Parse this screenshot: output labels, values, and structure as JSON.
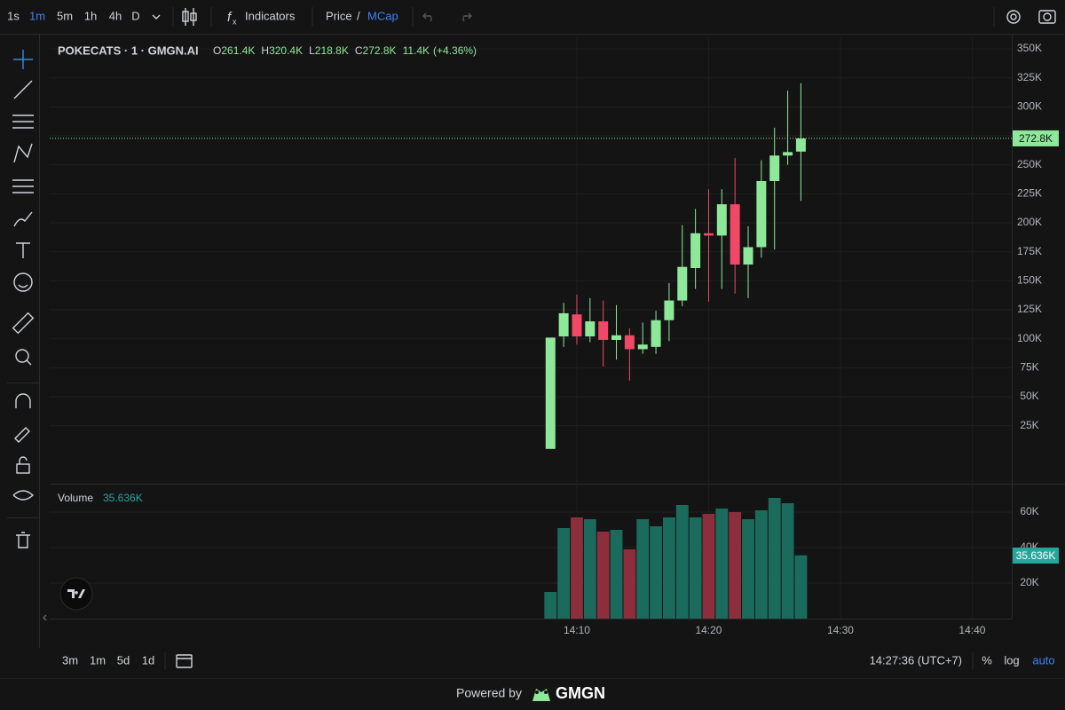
{
  "toolbar": {
    "intervals": [
      "1s",
      "1m",
      "5m",
      "1h",
      "4h",
      "D"
    ],
    "indicators": "Indicators",
    "price": "Price",
    "slash": "/",
    "mcap": "MCap"
  },
  "bottom_bar": {
    "ranges": [
      "3m",
      "1m",
      "5d",
      "1d"
    ],
    "clock": "14:27:36 (UTC+7)",
    "percent": "%",
    "log": "log",
    "auto": "auto"
  },
  "footer": {
    "powered_by": "Powered by",
    "brand": "GMGN"
  },
  "chart_data": [
    {
      "type": "candlestick",
      "title": "POKECATS · 1 · GMGN.AI",
      "legend": {
        "open_label": "O",
        "open": "261.4K",
        "high_label": "H",
        "high": "320.4K",
        "low_label": "L",
        "low": "218.8K",
        "close_label": "C",
        "close": "272.8K",
        "change": "11.4K",
        "change_pct": "(+4.36%)"
      },
      "x": [
        "14:08",
        "14:09",
        "14:10",
        "14:11",
        "14:12",
        "14:13",
        "14:14",
        "14:15",
        "14:16",
        "14:17",
        "14:18",
        "14:19",
        "14:20",
        "14:21",
        "14:22",
        "14:23",
        "14:24",
        "14:25",
        "14:26",
        "14:27"
      ],
      "open": [
        5000,
        102000,
        121000,
        102000,
        115000,
        99000,
        103000,
        91000,
        93000,
        116000,
        133000,
        161000,
        191000,
        189000,
        216000,
        164000,
        179000,
        236000,
        258000,
        261400
      ],
      "high": [
        101000,
        131000,
        138000,
        135000,
        133000,
        129000,
        109000,
        114000,
        124000,
        148000,
        198000,
        212000,
        229000,
        229000,
        256000,
        197000,
        254000,
        282000,
        314000,
        320400
      ],
      "low": [
        5000,
        93000,
        95000,
        97000,
        76000,
        82000,
        64000,
        87000,
        87000,
        98000,
        128000,
        143000,
        132000,
        143000,
        139000,
        135000,
        170000,
        177000,
        250000,
        218800
      ],
      "close": [
        101000,
        122000,
        102000,
        115000,
        99000,
        103000,
        91000,
        95000,
        116000,
        133000,
        162000,
        191000,
        189000,
        216000,
        164000,
        179000,
        236000,
        258000,
        261000,
        272800
      ],
      "last_label": "272.8K",
      "up_color": "#8ee89a",
      "down_color": "#f04866",
      "xlim": [
        "13:30",
        "14:43"
      ],
      "xticks": [
        "14:10",
        "14:20",
        "14:30",
        "14:40"
      ],
      "ylim": [
        -25000,
        360000
      ],
      "yticks": [
        {
          "value": 25000,
          "label": "25K"
        },
        {
          "value": 50000,
          "label": "50K"
        },
        {
          "value": 75000,
          "label": "75K"
        },
        {
          "value": 100000,
          "label": "100K"
        },
        {
          "value": 125000,
          "label": "125K"
        },
        {
          "value": 150000,
          "label": "150K"
        },
        {
          "value": 175000,
          "label": "175K"
        },
        {
          "value": 200000,
          "label": "200K"
        },
        {
          "value": 225000,
          "label": "225K"
        },
        {
          "value": 250000,
          "label": "250K"
        },
        {
          "value": 275000,
          "label": "275K"
        },
        {
          "value": 300000,
          "label": "300K"
        },
        {
          "value": 325000,
          "label": "325K"
        },
        {
          "value": 350000,
          "label": "350K"
        }
      ],
      "grid": true
    },
    {
      "type": "volume",
      "title": "Volume",
      "values": [
        15000,
        51000,
        57000,
        56000,
        49000,
        50000,
        39000,
        56000,
        52000,
        57000,
        64000,
        57000,
        59000,
        62000,
        60000,
        56000,
        61000,
        68000,
        65000,
        35636
      ],
      "last_label": "35.636K",
      "up_color": "#1a6b5c",
      "down_color": "#8c2e3b",
      "label_color": "#26a69a",
      "ylim": [
        0,
        75000
      ],
      "yticks": [
        {
          "value": 20000,
          "label": "20K"
        },
        {
          "value": 40000,
          "label": "40K"
        },
        {
          "value": 60000,
          "label": "60K"
        }
      ],
      "grid": true
    }
  ]
}
